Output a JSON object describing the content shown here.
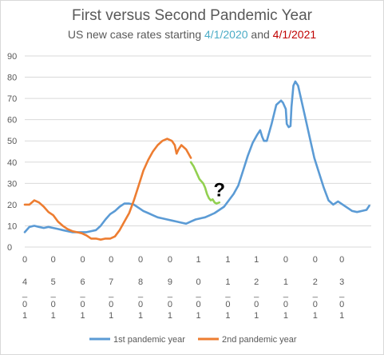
{
  "chart_data": {
    "type": "line",
    "title": "First versus Second Pandemic Year",
    "subtitle": {
      "prefix": "US new case rates starting ",
      "date1": "4/1/2020",
      "middle": " and ",
      "date2": "4/1/2021",
      "date1_color": "#4bacc6",
      "date2_color": "#c00000"
    },
    "ylim": [
      0,
      90
    ],
    "yticks": [
      0,
      10,
      20,
      30,
      40,
      50,
      60,
      70,
      80,
      90
    ],
    "xlim": [
      0,
      365
    ],
    "x_unit": "day",
    "grid": true,
    "xticks": [
      {
        "x": 0,
        "lines": [
          "0",
          "4",
          "_",
          "0",
          "1"
        ]
      },
      {
        "x": 30,
        "lines": [
          "0",
          "5",
          "_",
          "0",
          "1"
        ]
      },
      {
        "x": 61,
        "lines": [
          "0",
          "6",
          "_",
          "0",
          "1"
        ]
      },
      {
        "x": 91,
        "lines": [
          "0",
          "7",
          "_",
          "0",
          "1"
        ]
      },
      {
        "x": 122,
        "lines": [
          "0",
          "8",
          "_",
          "0",
          "1"
        ]
      },
      {
        "x": 153,
        "lines": [
          "0",
          "9",
          "_",
          "0",
          "1"
        ]
      },
      {
        "x": 183,
        "lines": [
          "1",
          "0",
          "_",
          "0",
          "1"
        ]
      },
      {
        "x": 214,
        "lines": [
          "1",
          "1",
          "_",
          "0",
          "1"
        ]
      },
      {
        "x": 244,
        "lines": [
          "1",
          "2",
          "_",
          "0",
          "1"
        ]
      },
      {
        "x": 275,
        "lines": [
          "0",
          "1",
          "_",
          "0",
          "1"
        ]
      },
      {
        "x": 306,
        "lines": [
          "0",
          "2",
          "_",
          "0",
          "1"
        ]
      },
      {
        "x": 334,
        "lines": [
          "0",
          "3",
          "_",
          "0",
          "1"
        ]
      }
    ],
    "series": [
      {
        "name": "1st pandemic year",
        "color": "#5b9bd5",
        "x": [
          0,
          5,
          10,
          15,
          20,
          25,
          30,
          35,
          40,
          45,
          50,
          55,
          60,
          65,
          70,
          75,
          80,
          85,
          90,
          95,
          100,
          105,
          110,
          115,
          120,
          125,
          130,
          135,
          140,
          145,
          150,
          155,
          160,
          165,
          170,
          175,
          180,
          185,
          190,
          195,
          200,
          205,
          210,
          215,
          220,
          225,
          230,
          235,
          240,
          245,
          248,
          250,
          252,
          255,
          260,
          265,
          270,
          272,
          275,
          276,
          278,
          280,
          281,
          283,
          285,
          288,
          290,
          295,
          300,
          305,
          310,
          315,
          320,
          325,
          330,
          335,
          340,
          345,
          350,
          355,
          360,
          363
        ],
        "values": [
          7,
          9.5,
          10,
          9.5,
          9,
          9.5,
          9,
          8.5,
          8,
          7.5,
          7,
          7,
          7,
          7,
          7.5,
          8,
          10,
          13,
          15.5,
          17,
          19,
          20.5,
          20.5,
          20,
          18.5,
          17,
          16,
          15,
          14,
          13.5,
          13,
          12.5,
          12,
          11.5,
          11,
          12,
          13,
          13.5,
          14,
          15,
          16,
          17.5,
          19,
          22,
          25,
          29,
          36,
          43,
          49,
          53,
          55,
          52,
          50,
          50,
          58,
          67,
          69,
          68,
          65,
          58,
          56.5,
          57,
          66,
          76,
          78,
          76,
          72,
          62,
          52,
          42,
          35,
          28,
          22,
          20,
          21.5,
          20,
          18.5,
          17,
          16.5,
          17,
          17.5,
          19.5
        ]
      },
      {
        "name": "2nd pandemic year",
        "color": "#ed7d31",
        "x": [
          0,
          5,
          10,
          15,
          20,
          25,
          30,
          35,
          40,
          45,
          50,
          55,
          60,
          65,
          70,
          75,
          80,
          85,
          90,
          95,
          100,
          105,
          110,
          115,
          120,
          125,
          130,
          135,
          140,
          145,
          150,
          155,
          158,
          160,
          162,
          165,
          170,
          175
        ],
        "values": [
          20,
          20,
          22,
          21,
          19,
          16.5,
          15,
          12,
          10,
          8.5,
          7.5,
          7,
          6.5,
          5.5,
          4,
          4,
          3.5,
          4,
          4,
          5,
          8,
          12,
          16,
          22,
          29,
          36,
          41,
          45,
          48,
          50,
          51,
          50,
          48,
          44,
          46,
          48,
          46,
          42
        ]
      },
      {
        "color": "#92d050",
        "x": [
          175,
          178,
          180,
          182,
          184,
          186,
          188,
          190,
          192,
          194,
          196,
          198,
          200,
          202,
          205
        ],
        "values": [
          40,
          38,
          36,
          34,
          32,
          31,
          30,
          28,
          25,
          23,
          22,
          22.5,
          21,
          20.5,
          21
        ]
      }
    ],
    "annotation": "?",
    "annotation_x": 205,
    "annotation_y": 24,
    "legend_position": "bottom"
  }
}
